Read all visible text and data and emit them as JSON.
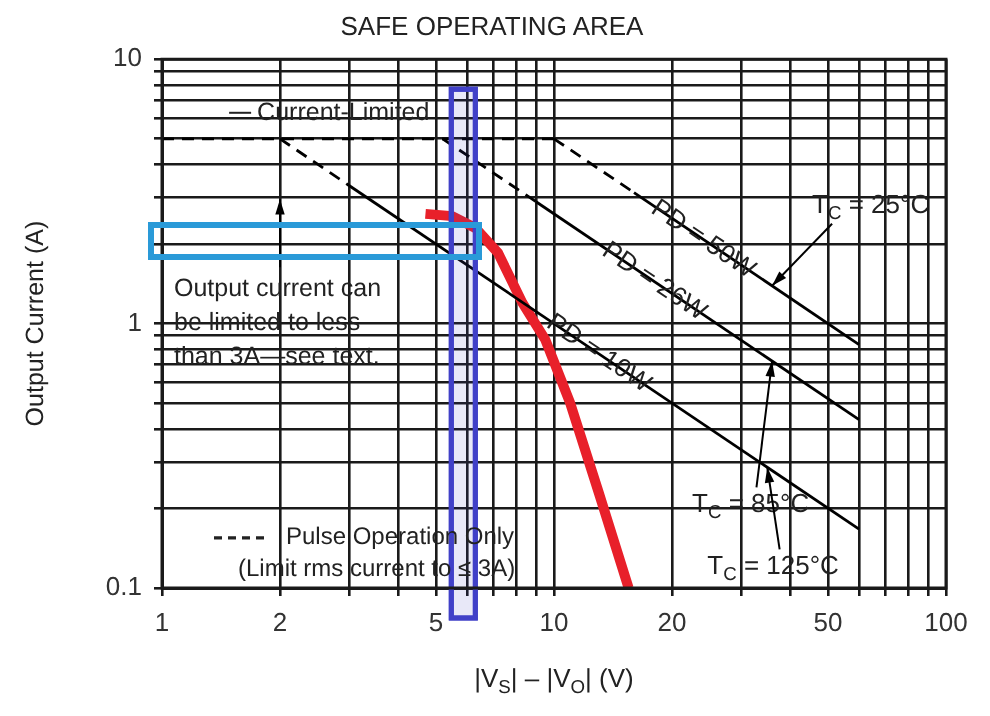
{
  "chart_data": {
    "type": "line",
    "title": "SAFE OPERATING AREA",
    "xlabel": "|V$_{S}$| – |V$_{O}$| (V)",
    "ylabel": "Output Current (A)",
    "log": "xy",
    "grid": true,
    "marker": "none",
    "xlim": [
      1,
      100
    ],
    "ylim": [
      0.1,
      10
    ],
    "xticks": [
      1,
      2,
      {
        "value": 3,
        "label": null
      },
      {
        "value": 4,
        "label": null
      },
      5,
      {
        "value": 6,
        "label": null
      },
      {
        "value": 7,
        "label": null
      },
      {
        "value": 8,
        "label": null
      },
      {
        "value": 9,
        "label": null
      },
      10,
      20,
      {
        "value": 30,
        "label": null
      },
      {
        "value": 40,
        "label": null
      },
      50,
      {
        "value": 60,
        "label": null
      },
      {
        "value": 70,
        "label": null
      },
      {
        "value": 80,
        "label": null
      },
      {
        "value": 90,
        "label": null
      },
      100
    ],
    "yticks": [
      0.1,
      {
        "value": 0.2,
        "label": null
      },
      {
        "value": 0.3,
        "label": null
      },
      {
        "value": 0.4,
        "label": null
      },
      {
        "value": 0.5,
        "label": null
      },
      {
        "value": 0.6,
        "label": null
      },
      {
        "value": 0.7,
        "label": null
      },
      {
        "value": 0.8,
        "label": null
      },
      {
        "value": 0.9,
        "label": null
      },
      1,
      {
        "value": 2,
        "label": null
      },
      {
        "value": 3,
        "label": null
      },
      {
        "value": 4,
        "label": null
      },
      {
        "value": 5,
        "label": null
      },
      {
        "value": 6,
        "label": null
      },
      {
        "value": 7,
        "label": null
      },
      {
        "value": 8,
        "label": null
      },
      {
        "value": 9,
        "label": null
      },
      10
    ],
    "series": [
      {
        "color": "#000000",
        "line_style": "dashed",
        "x": [
          1,
          10
        ],
        "values": [
          5,
          5
        ]
      },
      {
        "color": "#000000",
        "line_style": "dashed",
        "x": [
          2,
          3
        ],
        "values": [
          5,
          3.33
        ]
      },
      {
        "color": "#000000",
        "line_style": "solid",
        "x": [
          3,
          60
        ],
        "values": [
          3.33,
          0.167
        ]
      },
      {
        "color": "#000000",
        "line_style": "dashed",
        "x": [
          5.2,
          9
        ],
        "values": [
          5,
          2.89
        ]
      },
      {
        "color": "#000000",
        "line_style": "solid",
        "x": [
          9,
          60
        ],
        "values": [
          2.89,
          0.433
        ]
      },
      {
        "color": "#000000",
        "line_style": "dashed",
        "x": [
          10,
          16
        ],
        "values": [
          5,
          3.13
        ]
      },
      {
        "color": "#000000",
        "line_style": "solid",
        "x": [
          16,
          60
        ],
        "values": [
          3.13,
          0.833
        ]
      },
      {
        "color": "#e8202a",
        "line_style": "solid",
        "x": [
          4.7,
          5.5,
          6.3,
          7.2,
          8.3,
          9.5,
          11,
          13,
          15.5
        ],
        "values": [
          2.6,
          2.55,
          2.3,
          1.85,
          1.2,
          0.87,
          0.5,
          0.23,
          0.1
        ]
      }
    ],
    "bands": [
      {
        "axis": "x",
        "from": 5.47,
        "to": 6.3,
        "color": "#4040c8"
      }
    ],
    "annotations": [
      {
        "text": "Current-Limited",
        "x": 2.9,
        "y": 5
      },
      "Output current can be limited to less than 3A—see text.",
      "Pulse Operation Only (Limit rms current to ≤ 3A)",
      {
        "text": "T$_{C}$ = 25°C",
        "x": 36,
        "y": 1.39
      },
      {
        "text": "T$_{C}$ = 85°C",
        "x": 36,
        "y": 0.72
      },
      {
        "text": "T$_{C}$ = 125°C",
        "x": 35,
        "y": 0.286
      },
      {
        "text": "PD = 50W",
        "x": 24,
        "y": 2.08
      },
      {
        "text": "PD = 26W",
        "x": 18,
        "y": 1.44
      },
      {
        "text": "PD = 10W",
        "x": 13,
        "y": 0.77
      }
    ]
  }
}
